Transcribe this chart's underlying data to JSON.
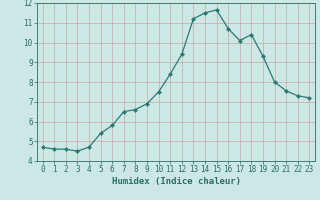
{
  "x": [
    0,
    1,
    2,
    3,
    4,
    5,
    6,
    7,
    8,
    9,
    10,
    11,
    12,
    13,
    14,
    15,
    16,
    17,
    18,
    19,
    20,
    21,
    22,
    23
  ],
  "y": [
    4.7,
    4.6,
    4.6,
    4.5,
    4.7,
    5.4,
    5.8,
    6.5,
    6.6,
    6.9,
    7.5,
    8.4,
    9.4,
    11.2,
    11.5,
    11.65,
    10.7,
    10.1,
    10.4,
    9.3,
    8.0,
    7.55,
    7.3,
    7.2
  ],
  "line_color": "#2d7a70",
  "marker": "D",
  "marker_size": 2.0,
  "bg_color": "#cce8e4",
  "grid_color": "#c9a8a8",
  "tick_color": "#2d6e65",
  "xlabel": "Humidex (Indice chaleur)",
  "xlabel_fontsize": 6.5,
  "xlim": [
    -0.5,
    23.5
  ],
  "ylim": [
    4,
    12
  ],
  "yticks": [
    4,
    5,
    6,
    7,
    8,
    9,
    10,
    11,
    12
  ],
  "xticks": [
    0,
    1,
    2,
    3,
    4,
    5,
    6,
    7,
    8,
    9,
    10,
    11,
    12,
    13,
    14,
    15,
    16,
    17,
    18,
    19,
    20,
    21,
    22,
    23
  ],
  "tick_fontsize": 5.5,
  "line_width": 0.9
}
